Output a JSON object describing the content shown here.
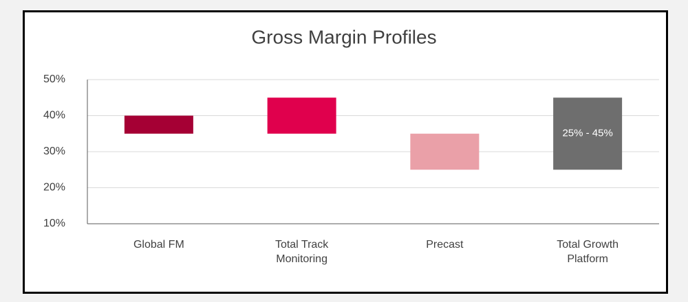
{
  "chart_data": {
    "type": "range_bar",
    "title": "Gross Margin Profiles",
    "categories": [
      "Global FM",
      "Total Track Monitoring",
      "Precast",
      "Total Growth Platform"
    ],
    "lows": [
      35,
      35,
      25,
      25
    ],
    "highs": [
      40,
      45,
      35,
      45
    ],
    "colors": [
      "#a50034",
      "#e0004d",
      "#eaa0a8",
      "#6e6e6e"
    ],
    "value_labels": [
      null,
      null,
      null,
      "25% - 45%"
    ],
    "ylim": [
      10,
      50
    ],
    "yticks": [
      {
        "value": 10,
        "label": "10%"
      },
      {
        "value": 20,
        "label": "20%"
      },
      {
        "value": 30,
        "label": "30%"
      },
      {
        "value": 40,
        "label": "40%"
      },
      {
        "value": 50,
        "label": "50%"
      }
    ],
    "grid": true
  }
}
